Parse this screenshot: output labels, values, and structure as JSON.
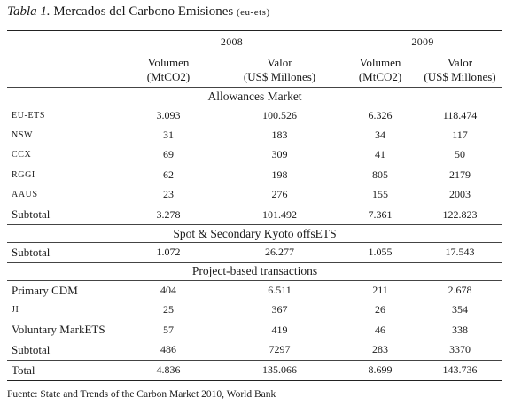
{
  "caption": {
    "prefix": "Tabla 1.",
    "main": "Mercados del Carbono Emisiones",
    "suffix": "(eu-ets)"
  },
  "years": [
    "2008",
    "2009"
  ],
  "col_headers": {
    "vol_line1": "Volumen",
    "vol_line2": "(MtCO2)",
    "val_line1": "Valor",
    "val_line2": "(US$ Millones)"
  },
  "sections": [
    {
      "title": "Allowances Market",
      "rows": [
        {
          "label": "EU-ETS",
          "small": true,
          "cells": [
            "3.093",
            "100.526",
            "6.326",
            "118.474"
          ]
        },
        {
          "label": "NSW",
          "small": true,
          "cells": [
            "31",
            "183",
            "34",
            "117"
          ]
        },
        {
          "label": "CCX",
          "small": true,
          "cells": [
            "69",
            "309",
            "41",
            "50"
          ]
        },
        {
          "label": "RGGI",
          "small": true,
          "cells": [
            "62",
            "198",
            "805",
            "2179"
          ]
        },
        {
          "label": "AAUS",
          "small": true,
          "cells": [
            "23",
            "276",
            "155",
            "2003"
          ]
        },
        {
          "label": "Subtotal",
          "small": false,
          "cells": [
            "3.278",
            "101.492",
            "7.361",
            "122.823"
          ]
        }
      ]
    },
    {
      "title": "Spot & Secondary Kyoto offsETS",
      "rows": [
        {
          "label": "Subtotal",
          "small": false,
          "cells": [
            "1.072",
            "26.277",
            "1.055",
            "17.543"
          ]
        }
      ]
    },
    {
      "title": "Project-based transactions",
      "rows": [
        {
          "label": "Primary CDM",
          "small": false,
          "cells": [
            "404",
            "6.511",
            "211",
            "2.678"
          ]
        },
        {
          "label": "JI",
          "small": true,
          "cells": [
            "25",
            "367",
            "26",
            "354"
          ]
        },
        {
          "label": "Voluntary MarkETS",
          "small": false,
          "cells": [
            "57",
            "419",
            "46",
            "338"
          ]
        },
        {
          "label": "Subtotal",
          "small": false,
          "cells": [
            "486",
            "7297",
            "283",
            "3370"
          ]
        }
      ]
    }
  ],
  "total": {
    "label": "Total",
    "cells": [
      "4.836",
      "135.066",
      "8.699",
      "143.736"
    ]
  },
  "source": "Fuente: State and Trends of the Carbon Market 2010, World Bank"
}
